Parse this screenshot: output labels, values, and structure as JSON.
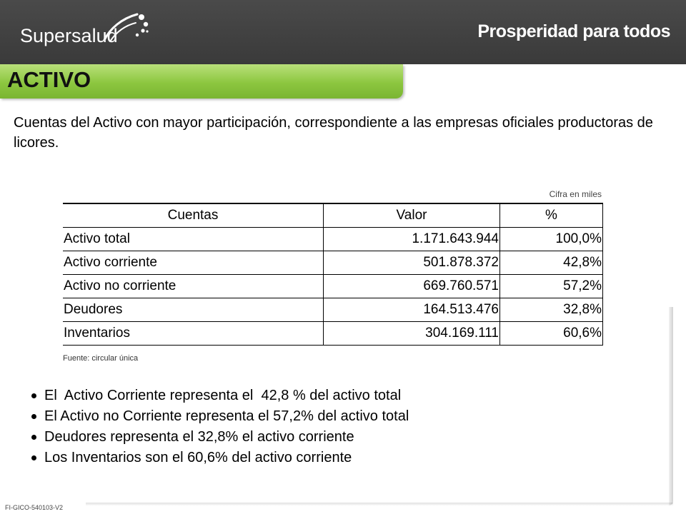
{
  "header": {
    "brand_left": "Supersalud",
    "brand_right": "Prosperidad para todos"
  },
  "section_title": "ACTIVO",
  "intro_text": "Cuentas del Activo con mayor participación, correspondiente a las empresas oficiales productoras de licores.",
  "table": {
    "note": "Cifra en miles",
    "headers": [
      "Cuentas",
      "Valor",
      "%"
    ],
    "rows": [
      {
        "cuenta": "Activo total",
        "valor": "1.171.643.944",
        "pct": "100,0%"
      },
      {
        "cuenta": "Activo corriente",
        "valor": "501.878.372",
        "pct": "42,8%"
      },
      {
        "cuenta": "Activo no corriente",
        "valor": "669.760.571",
        "pct": "57,2%"
      },
      {
        "cuenta": "Deudores",
        "valor": "164.513.476",
        "pct": "32,8%"
      },
      {
        "cuenta": "Inventarios",
        "valor": "304.169.111",
        "pct": "60,6%"
      }
    ],
    "source": "Fuente: circular única"
  },
  "bullets": [
    "El  Activo Corriente representa el  42,8 % del activo total",
    "El Activo no Corriente representa el 57,2% del activo total",
    "Deudores representa el 32,8% el activo corriente",
    "Los Inventarios son el 60,6% del activo corriente"
  ],
  "footer_code": "FI-GICO-540103-V2",
  "colors": {
    "header_bg": "#3f3f3f",
    "band_green": "#8cc63f",
    "text": "#000000"
  },
  "icons": {
    "brand_mark": "supersalud-swirl-logo"
  }
}
